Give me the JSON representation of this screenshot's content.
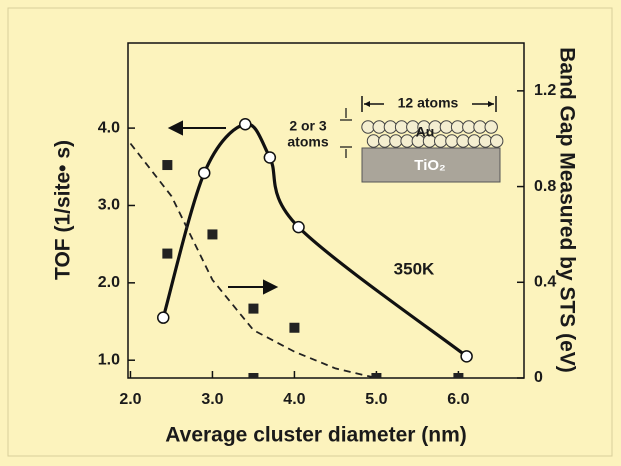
{
  "chart_data": {
    "type": "line",
    "xlabel": "Average cluster diameter (nm)",
    "ylabel": "TOF (1/site• s)",
    "y2label": "Band Gap Measured by STS (eV)",
    "xlim": [
      1.97,
      6.8
    ],
    "xticks": [
      {
        "value": 2,
        "label": "2.0"
      },
      {
        "value": 3,
        "label": "3.0"
      },
      {
        "value": 4,
        "label": "4.0"
      },
      {
        "value": 5,
        "label": "5.0"
      },
      {
        "value": 6,
        "label": "6.0"
      }
    ],
    "ylim": [
      0.77,
      5.1
    ],
    "yticks": [
      {
        "value": 1,
        "label": "1.0"
      },
      {
        "value": 2,
        "label": "2.0"
      },
      {
        "value": 3,
        "label": "3.0"
      },
      {
        "value": 4,
        "label": "4.0"
      }
    ],
    "y2lim": [
      0,
      1.4
    ],
    "y2ticks": [
      0,
      0.4,
      0.8,
      1.2
    ],
    "series": [
      {
        "x": [
          2.4,
          2.9,
          3.4,
          3.7,
          4.05,
          6.1
        ],
        "values": [
          1.55,
          3.42,
          4.05,
          3.62,
          2.72,
          1.05
        ],
        "color": "#111111",
        "style": "smooth",
        "marker": "circle"
      },
      {
        "x": [
          2.45,
          2.45,
          3.0,
          3.5,
          4.0,
          3.5,
          5.0,
          6.0
        ],
        "values": [
          0.89,
          0.52,
          0.6,
          0.29,
          0.21,
          0,
          0,
          0
        ],
        "axis": "y2",
        "color": "#222222",
        "marker": "square"
      },
      {
        "x": [
          2.0,
          2.5,
          3.0,
          3.5,
          4.0,
          4.5,
          5.0
        ],
        "values": [
          0.98,
          0.76,
          0.41,
          0.2,
          0.11,
          0.04,
          0
        ],
        "axis": "y2",
        "color": "#222222",
        "style": "dashed"
      }
    ],
    "annotations": {
      "temperature": "350K",
      "width": "12 atoms",
      "metal": "Au",
      "height_1": "2 or 3",
      "height_2": "atoms",
      "support": "TiO₂"
    }
  }
}
